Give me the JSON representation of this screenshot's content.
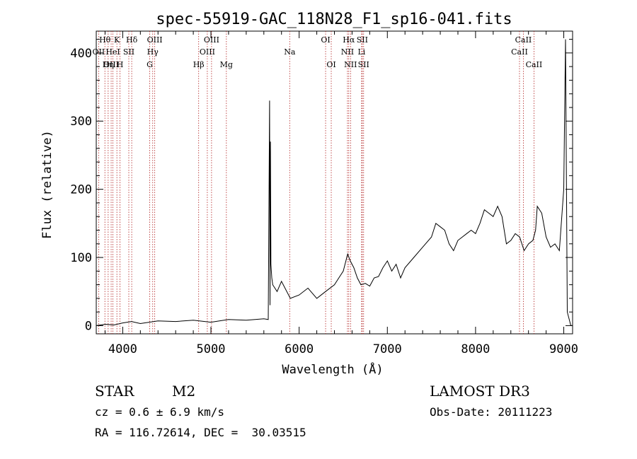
{
  "chart_data": {
    "type": "line",
    "title": "spec-55919-GAC_118N28_F1_sp16-041.fits",
    "xlabel": "Wavelength (Å)",
    "ylabel": "Flux (relative)",
    "xlim": [
      3700,
      9100
    ],
    "ylim": [
      -12,
      432
    ],
    "x_ticks": [
      4000,
      5000,
      6000,
      7000,
      8000,
      9000
    ],
    "y_ticks": [
      0,
      100,
      200,
      300,
      400
    ],
    "x_tick_labels": [
      "4000",
      "5000",
      "6000",
      "7000",
      "8000",
      "9000"
    ],
    "y_tick_labels": [
      "0",
      "100",
      "200",
      "300",
      "400"
    ],
    "grid": false,
    "line_color": "#000000",
    "marker_color": "#b22222",
    "series": [
      {
        "x": [
          3700,
          3800,
          3900,
          4000,
          4100,
          4200,
          4400,
          4600,
          4800,
          5000,
          5200,
          5400,
          5600,
          5650,
          5665,
          5670,
          5675,
          5680,
          5690,
          5700,
          5750,
          5800,
          5900,
          6000,
          6100,
          6200,
          6300,
          6400,
          6450,
          6500,
          6550,
          6580,
          6620,
          6660,
          6700,
          6750,
          6800,
          6850,
          6900,
          6950,
          7000,
          7050,
          7100,
          7150,
          7200,
          7300,
          7400,
          7500,
          7550,
          7600,
          7650,
          7700,
          7750,
          7800,
          7850,
          7900,
          7950,
          8000,
          8050,
          8100,
          8150,
          8200,
          8250,
          8300,
          8350,
          8400,
          8450,
          8500,
          8550,
          8600,
          8650,
          8680,
          8700,
          8750,
          8800,
          8850,
          8900,
          8950,
          9000,
          9020,
          9040,
          9060,
          9080,
          9100
        ],
        "values": [
          0,
          2,
          1,
          4,
          6,
          3,
          7,
          6,
          8,
          5,
          9,
          8,
          10,
          9,
          330,
          30,
          270,
          90,
          70,
          60,
          50,
          65,
          40,
          45,
          55,
          40,
          50,
          60,
          70,
          80,
          105,
          95,
          85,
          70,
          60,
          62,
          58,
          70,
          72,
          85,
          95,
          80,
          90,
          70,
          85,
          100,
          115,
          130,
          150,
          145,
          140,
          120,
          110,
          125,
          130,
          135,
          140,
          135,
          150,
          170,
          165,
          160,
          175,
          160,
          120,
          125,
          135,
          130,
          110,
          120,
          125,
          140,
          175,
          165,
          130,
          115,
          120,
          110,
          200,
          420,
          20,
          10,
          0,
          0
        ]
      }
    ],
    "lines": [
      {
        "name": "Hθ",
        "x": 3798,
        "row": 0
      },
      {
        "name": "OII",
        "x": 3727,
        "row": 1
      },
      {
        "name": "OIII",
        "x": 3869,
        "row": 2
      },
      {
        "name": "K",
        "x": 3934,
        "row": 0
      },
      {
        "name": "HeI",
        "x": 3889,
        "row": 1
      },
      {
        "name": "Hη",
        "x": 3835,
        "row": 2
      },
      {
        "name": "SII",
        "x": 4069,
        "row": 1
      },
      {
        "name": "H",
        "x": 3969,
        "row": 2
      },
      {
        "name": "Hδ",
        "x": 4102,
        "row": 0
      },
      {
        "name": "OIII",
        "x": 4363,
        "row": 0
      },
      {
        "name": "Hγ",
        "x": 4340,
        "row": 1
      },
      {
        "name": "G",
        "x": 4306,
        "row": 2
      },
      {
        "name": "OIII",
        "x": 5007,
        "row": 0
      },
      {
        "name": "OIII",
        "x": 4959,
        "row": 1
      },
      {
        "name": "Hβ",
        "x": 4861,
        "row": 2
      },
      {
        "name": "Mg",
        "x": 5175,
        "row": 2
      },
      {
        "name": "Na",
        "x": 5893,
        "row": 1
      },
      {
        "name": "OI",
        "x": 6300,
        "row": 0
      },
      {
        "name": "OI",
        "x": 6364,
        "row": 2
      },
      {
        "name": "Hα",
        "x": 6563,
        "row": 0
      },
      {
        "name": "SII",
        "x": 6716,
        "row": 0
      },
      {
        "name": "NII",
        "x": 6548,
        "row": 1
      },
      {
        "name": "Li",
        "x": 6708,
        "row": 1
      },
      {
        "name": "NII",
        "x": 6583,
        "row": 2
      },
      {
        "name": "SII",
        "x": 6731,
        "row": 2
      },
      {
        "name": "CaII",
        "x": 8542,
        "row": 0
      },
      {
        "name": "CaII",
        "x": 8498,
        "row": 1
      },
      {
        "name": "CaII",
        "x": 8662,
        "row": 2
      }
    ],
    "annotations": {
      "object_class": "STAR",
      "subclass": "M2",
      "survey": "LAMOST DR3",
      "cz": "cz = 0.6 ± 6.9 km/s",
      "obs_date": "Obs-Date: 20111223",
      "coords": "RA = 116.72614, DEC =  30.03515"
    }
  }
}
